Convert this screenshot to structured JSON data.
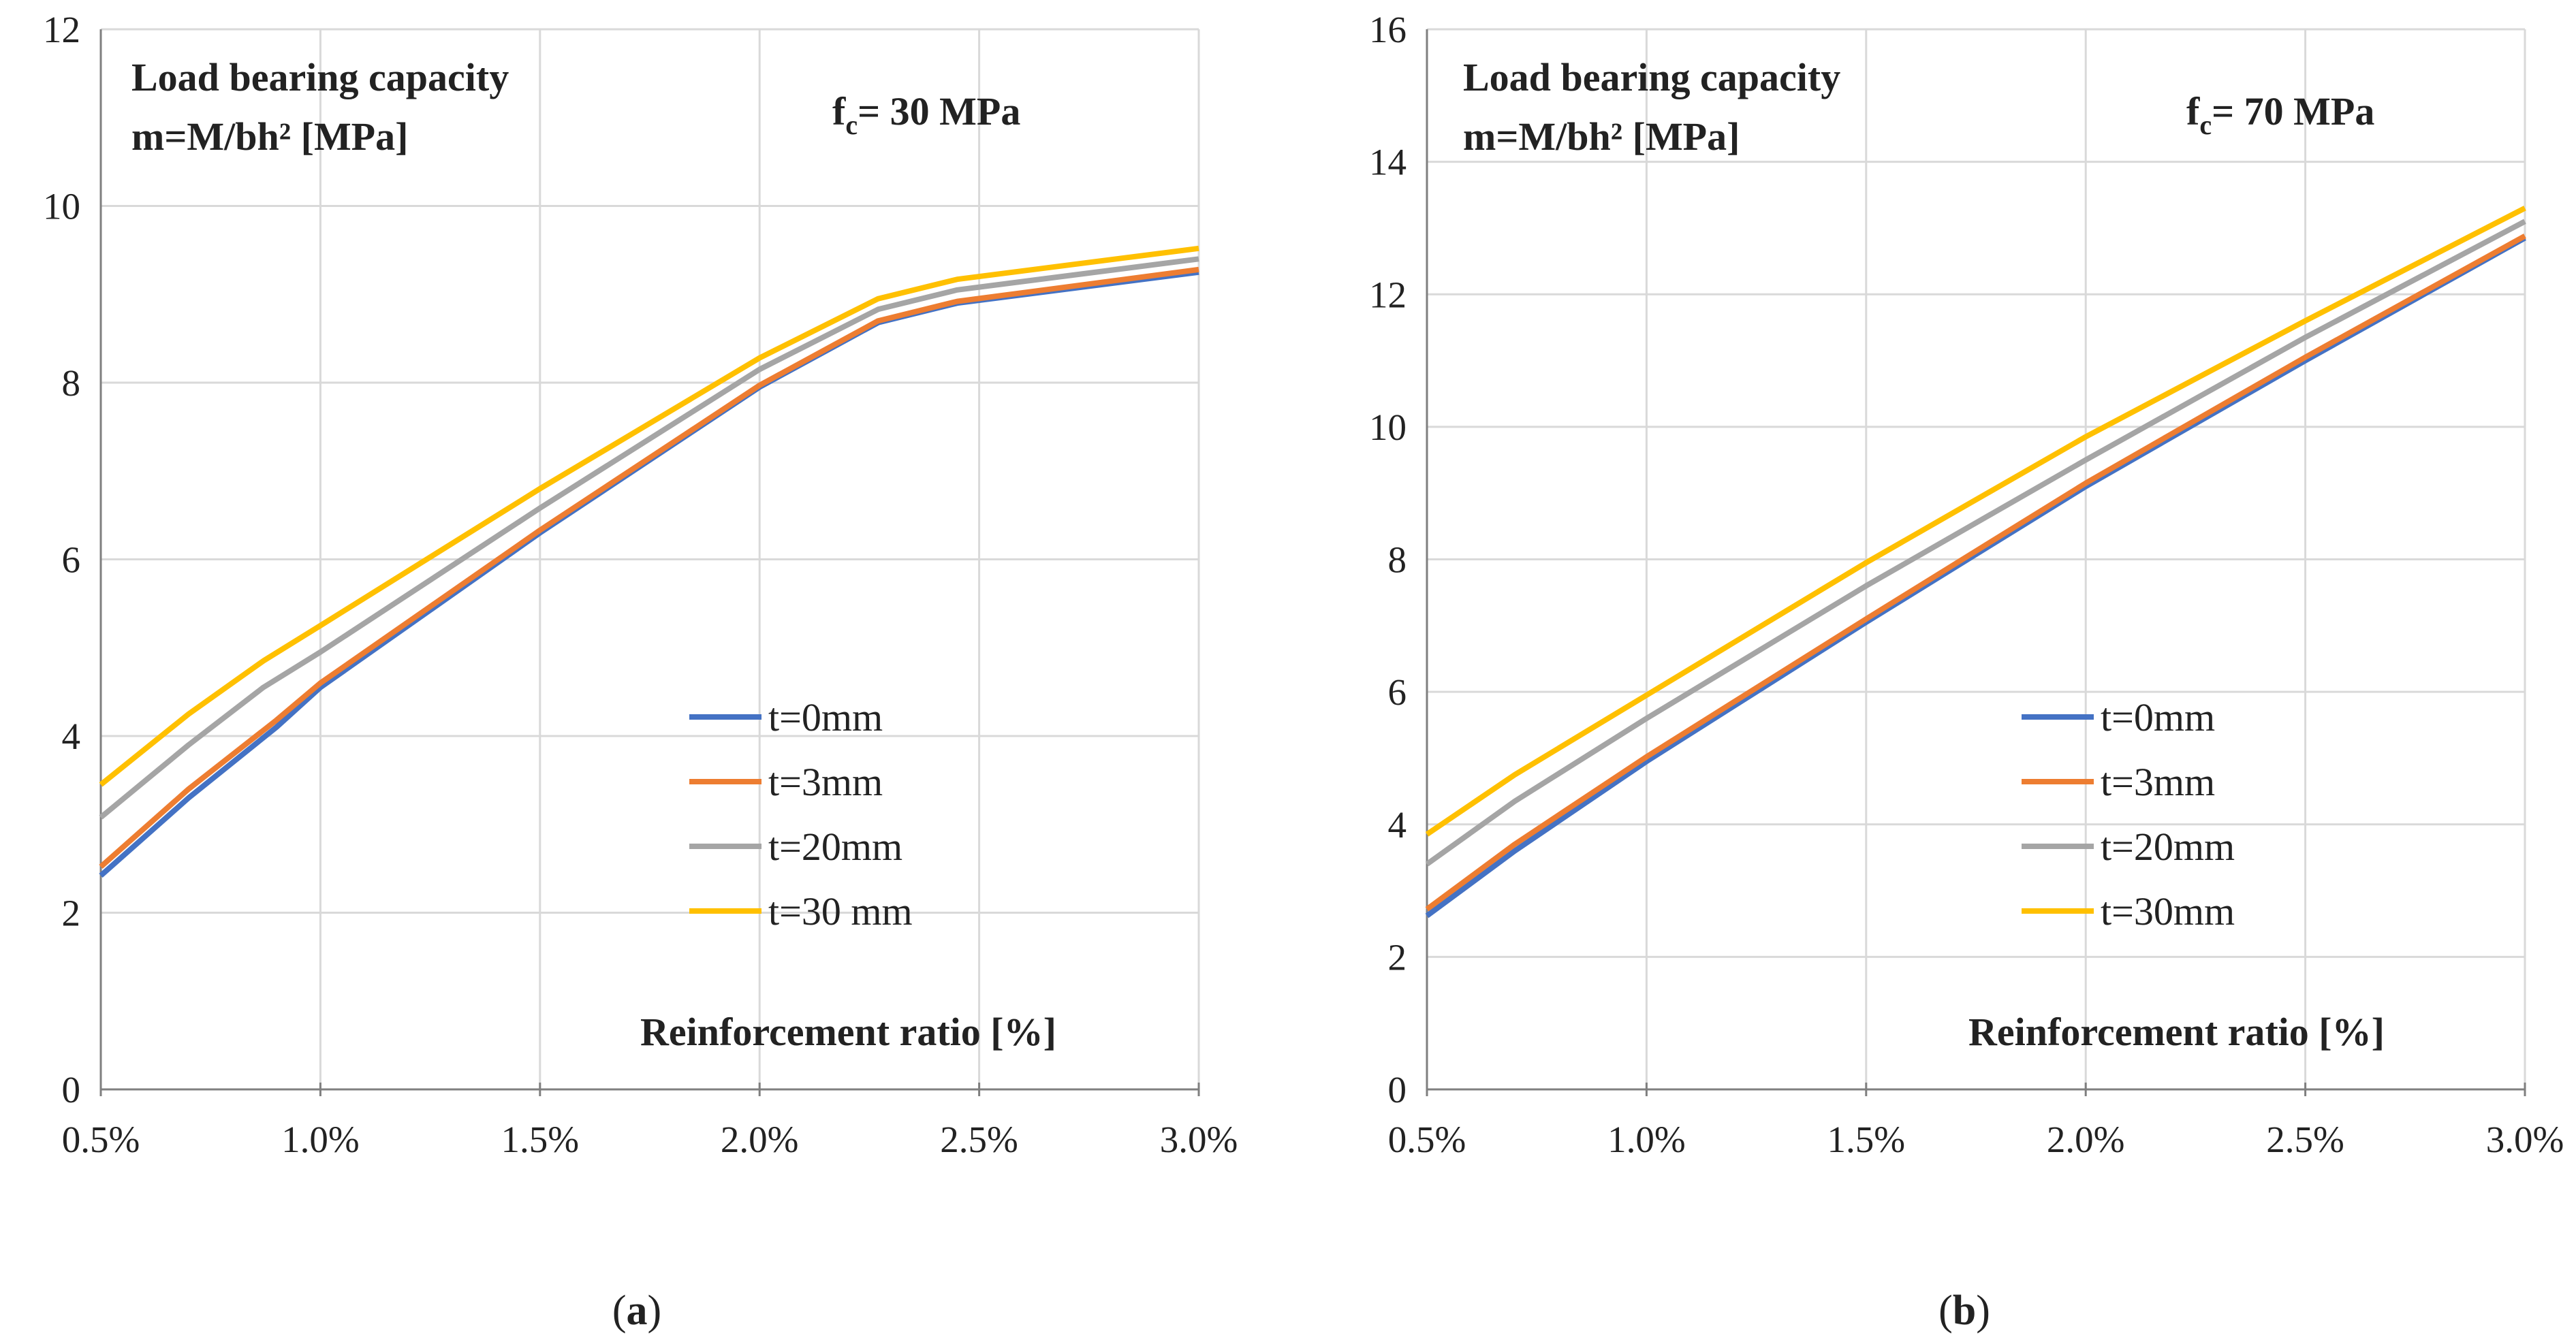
{
  "chart_data": [
    {
      "type": "line",
      "caption_prefix": "(",
      "caption_letter": "a",
      "caption_suffix": ")",
      "title_line1": "Load bearing capacity",
      "title_line2": "m=M/bh² [MPa]",
      "fc_main": "f",
      "fc_sub": "c",
      "fc_rest": "= 30 MPa",
      "xlabel": "Reinforcement ratio [%]",
      "xlim": [
        0.5,
        3.0
      ],
      "ylim": [
        0,
        12
      ],
      "x_ticks": [
        0.5,
        1.0,
        1.5,
        2.0,
        2.5,
        3.0
      ],
      "x_tick_labels": [
        "0.5%",
        "1.0%",
        "1.5%",
        "2.0%",
        "2.5%",
        "3.0%"
      ],
      "y_ticks": [
        0,
        2,
        4,
        6,
        8,
        10,
        12
      ],
      "y_tick_labels": [
        "0",
        "2",
        "4",
        "6",
        "8",
        "10",
        "12"
      ],
      "grid": true,
      "legend_position": "lower-right",
      "series": [
        {
          "name": "t=0mm",
          "color": "#4472C4",
          "x": [
            0.5,
            0.7,
            0.9,
            1.0,
            1.5,
            2.0,
            2.27,
            2.45,
            3.0
          ],
          "y": [
            2.42,
            3.3,
            4.1,
            4.55,
            6.3,
            7.95,
            8.68,
            8.9,
            9.25
          ]
        },
        {
          "name": "t=3mm",
          "color": "#ED7D31",
          "x": [
            0.5,
            0.7,
            0.9,
            1.0,
            1.5,
            2.0,
            2.27,
            2.45,
            3.0
          ],
          "y": [
            2.52,
            3.4,
            4.18,
            4.6,
            6.33,
            7.97,
            8.7,
            8.92,
            9.28
          ]
        },
        {
          "name": "t=20mm",
          "color": "#A5A5A5",
          "x": [
            0.5,
            0.7,
            0.87,
            1.0,
            1.5,
            2.0,
            2.27,
            2.45,
            3.0
          ],
          "y": [
            3.08,
            3.9,
            4.55,
            4.95,
            6.58,
            8.15,
            8.83,
            9.05,
            9.4
          ]
        },
        {
          "name": "t=30 mm",
          "color": "#FFC000",
          "x": [
            0.5,
            0.7,
            0.87,
            1.0,
            1.5,
            2.0,
            2.27,
            2.45,
            3.0
          ],
          "y": [
            3.45,
            4.25,
            4.85,
            5.25,
            6.8,
            8.28,
            8.95,
            9.17,
            9.52
          ]
        }
      ]
    },
    {
      "type": "line",
      "caption_prefix": "(",
      "caption_letter": "b",
      "caption_suffix": ")",
      "title_line1": "Load bearing capacity",
      "title_line2": "m=M/bh² [MPa]",
      "fc_main": "f",
      "fc_sub": "c",
      "fc_rest": "= 70 MPa",
      "xlabel": "Reinforcement ratio [%]",
      "xlim": [
        0.5,
        3.0
      ],
      "ylim": [
        0,
        16
      ],
      "x_ticks": [
        0.5,
        1.0,
        1.5,
        2.0,
        2.5,
        3.0
      ],
      "x_tick_labels": [
        "0.5%",
        "1.0%",
        "1.5%",
        "2.0%",
        "2.5%",
        "3.0%"
      ],
      "y_ticks": [
        0,
        2,
        4,
        6,
        8,
        10,
        12,
        14,
        16
      ],
      "y_tick_labels": [
        "0",
        "2",
        "4",
        "6",
        "8",
        "10",
        "12",
        "14",
        "16"
      ],
      "grid": true,
      "legend_position": "lower-right",
      "series": [
        {
          "name": "t=0mm",
          "color": "#4472C4",
          "x": [
            0.5,
            0.7,
            1.0,
            1.5,
            2.0,
            2.5,
            3.0
          ],
          "y": [
            2.62,
            3.6,
            4.95,
            7.05,
            9.1,
            11.0,
            12.85
          ]
        },
        {
          "name": "t=3mm",
          "color": "#ED7D31",
          "x": [
            0.5,
            0.7,
            1.0,
            1.5,
            2.0,
            2.5,
            3.0
          ],
          "y": [
            2.72,
            3.7,
            5.02,
            7.1,
            9.15,
            11.05,
            12.88
          ]
        },
        {
          "name": "t=20mm",
          "color": "#A5A5A5",
          "x": [
            0.5,
            0.7,
            1.0,
            1.5,
            2.0,
            2.5,
            3.0
          ],
          "y": [
            3.4,
            4.35,
            5.6,
            7.6,
            9.5,
            11.35,
            13.1
          ]
        },
        {
          "name": "t=30mm",
          "color": "#FFC000",
          "x": [
            0.5,
            0.7,
            1.0,
            1.5,
            2.0,
            2.5,
            3.0
          ],
          "y": [
            3.85,
            4.75,
            5.95,
            7.95,
            9.85,
            11.6,
            13.3
          ]
        }
      ]
    }
  ]
}
